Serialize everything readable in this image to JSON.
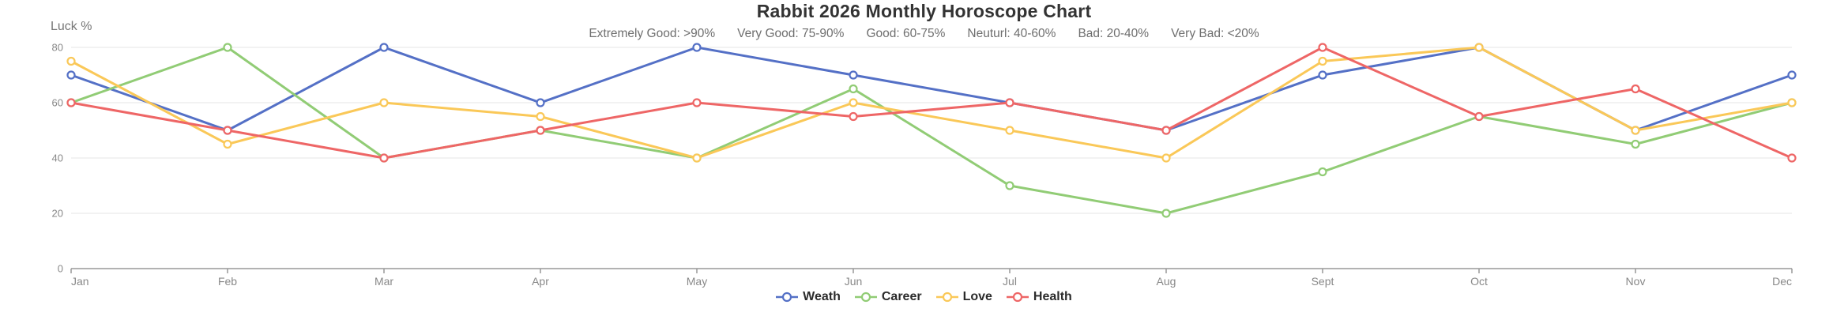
{
  "chart_data": {
    "type": "line",
    "title": "Rabbit 2026 Monthly Horoscope Chart",
    "ylabel": "Luck %",
    "ylim": [
      0,
      80
    ],
    "yticks": [
      0,
      20,
      40,
      60,
      80
    ],
    "grid": "horizontal-only",
    "legend_position": "bottom",
    "categories": [
      "Jan",
      "Feb",
      "Mar",
      "Apr",
      "May",
      "Jun",
      "Jul",
      "Aug",
      "Sept",
      "Oct",
      "Nov",
      "Dec"
    ],
    "series": [
      {
        "name": "Weath",
        "color": "#5470C6",
        "values": [
          70,
          50,
          80,
          60,
          80,
          70,
          60,
          50,
          70,
          80,
          50,
          70
        ]
      },
      {
        "name": "Career",
        "color": "#91CC75",
        "values": [
          60,
          80,
          40,
          50,
          40,
          65,
          30,
          20,
          35,
          55,
          45,
          60
        ]
      },
      {
        "name": "Love",
        "color": "#FAC858",
        "values": [
          75,
          45,
          60,
          55,
          40,
          60,
          50,
          40,
          75,
          80,
          50,
          60
        ]
      },
      {
        "name": "Health",
        "color": "#EE6666",
        "values": [
          60,
          50,
          40,
          50,
          60,
          55,
          60,
          50,
          80,
          55,
          65,
          40
        ]
      }
    ]
  },
  "subtitle": {
    "items": [
      "Extremely Good: >90%",
      "Very Good: 75-90%",
      "Good: 60-75%",
      "Neuturl: 40-60%",
      "Bad: 20-40%",
      "Very Bad: <20%"
    ]
  },
  "style_colors": {
    "title_text": "#333333",
    "subtitle_text": "#6e6e6e",
    "axis_line": "#999999",
    "tick_label": "#888888",
    "gridline": "#e6e6e6",
    "legend_text": "#2b2b2b"
  }
}
